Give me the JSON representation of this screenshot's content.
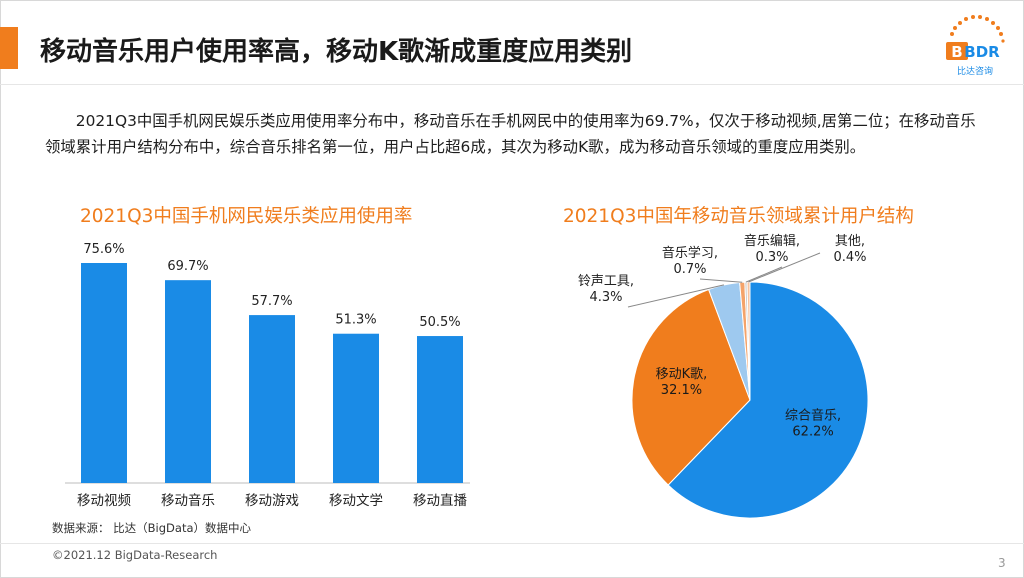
{
  "header": {
    "title": "移动音乐用户使用率高，移动K歌渐成重度应用类别",
    "logo_text": "BDR",
    "logo_sub": "比达咨询"
  },
  "summary": "2021Q3中国手机网民娱乐类应用使用率分布中，移动音乐在手机网民中的使用率为69.7%，仅次于移动视频,居第二位；在移动音乐领域累计用户结构分布中，综合音乐排名第一位，用户占比超6成，其次为移动K歌，成为移动音乐领域的重度应用类别。",
  "chart_data": [
    {
      "type": "bar",
      "title": "2021Q3中国手机网民娱乐类应用使用率",
      "categories": [
        "移动视频",
        "移动音乐",
        "移动游戏",
        "移动文学",
        "移动直播"
      ],
      "values": [
        75.6,
        69.7,
        57.7,
        51.3,
        50.5
      ],
      "value_labels": [
        "75.6%",
        "69.7%",
        "57.7%",
        "51.3%",
        "50.5%"
      ],
      "unit": "%",
      "ylim": [
        0,
        80
      ],
      "xlabel": "",
      "ylabel": "",
      "grid": false,
      "color": "#1a8be6"
    },
    {
      "type": "pie",
      "title": "2021Q3中国年移动音乐领域累计用户结构",
      "labels": [
        "综合音乐",
        "移动K歌",
        "铃声工具",
        "音乐学习",
        "音乐编辑",
        "其他"
      ],
      "values": [
        62.2,
        32.1,
        4.3,
        0.7,
        0.3,
        0.4
      ],
      "value_labels": [
        "62.2%",
        "32.1%",
        "4.3%",
        "0.7%",
        "0.3%",
        "0.4%"
      ],
      "label_suffix": ",",
      "colors": [
        "#1a8be6",
        "#f07d1d",
        "#9ec9ef",
        "#f4a36a",
        "#c9c9c9",
        "#f7c3a0"
      ]
    }
  ],
  "footer": {
    "source": "数据来源： 比达（BigData）数据中心",
    "copyright": "©2021.12 BigData-Research",
    "page": "3"
  }
}
